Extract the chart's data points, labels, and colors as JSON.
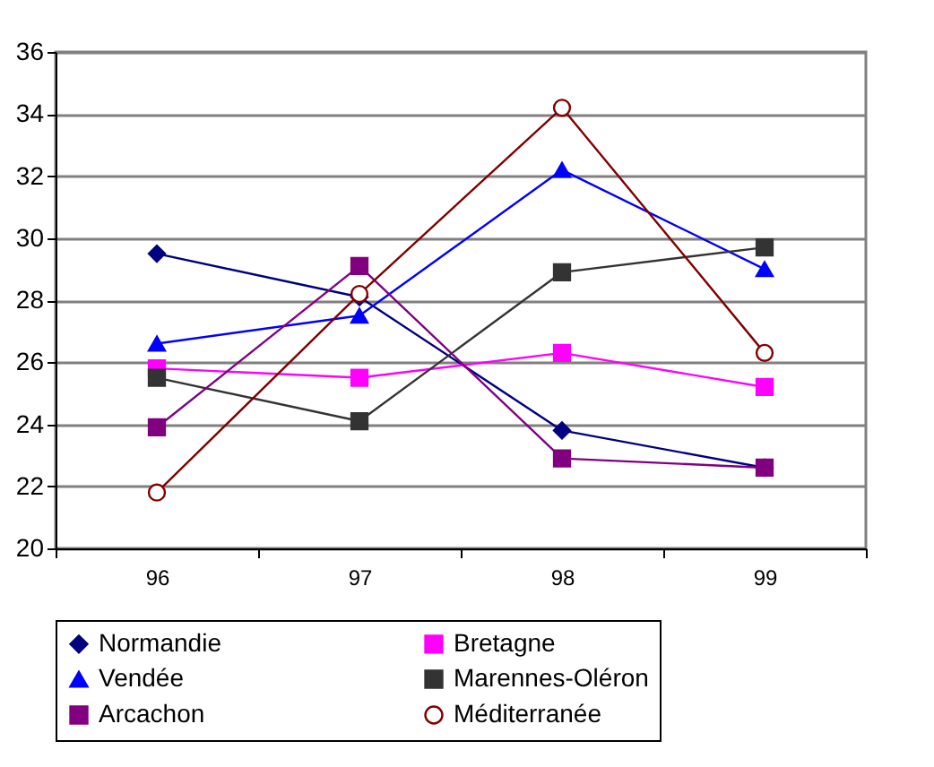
{
  "chart_data": {
    "type": "line",
    "categories": [
      "96",
      "97",
      "98",
      "99"
    ],
    "series": [
      {
        "name": "Normandie",
        "color": "#000080",
        "marker": "diamond",
        "values": [
          29.5,
          28.1,
          23.8,
          22.6
        ]
      },
      {
        "name": "Bretagne",
        "color": "#ff00ff",
        "marker": "square",
        "values": [
          25.8,
          25.5,
          26.3,
          25.2
        ]
      },
      {
        "name": "Vendée",
        "color": "#0000ff",
        "marker": "triangle",
        "values": [
          26.6,
          27.5,
          32.2,
          29.0
        ]
      },
      {
        "name": "Marennes-Oléron",
        "color": "#333333",
        "marker": "square",
        "values": [
          25.5,
          24.1,
          28.9,
          29.7
        ]
      },
      {
        "name": "Arcachon",
        "color": "#800080",
        "marker": "square",
        "values": [
          23.9,
          29.1,
          22.9,
          22.6
        ]
      },
      {
        "name": "Méditerranée",
        "color": "#800000",
        "marker": "circle",
        "values": [
          21.8,
          28.2,
          34.2,
          26.3
        ]
      }
    ],
    "ylim": [
      20,
      36
    ],
    "yticks": [
      20,
      22,
      24,
      26,
      28,
      30,
      32,
      34,
      36
    ],
    "grid": "y",
    "legend": "bottom"
  }
}
